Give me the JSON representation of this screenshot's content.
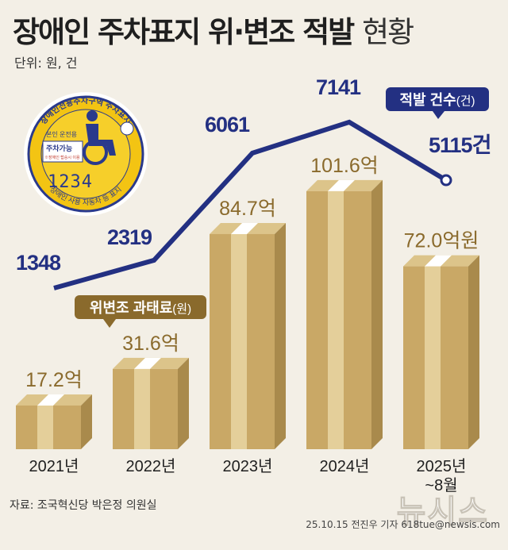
{
  "header": {
    "title_bold": "장애인 주차표지 위·변조 적발",
    "title_light": "현황",
    "unit": "단위: 원, 건"
  },
  "footer": {
    "source": "자료: 조국혁신당 박은정 의원실",
    "credit": "25.10.15 전진우 기자 618tue@newsis.com",
    "watermark": "뉴시스"
  },
  "badge": {
    "top_text": "장애인전용주차구역 주차표지",
    "line1": "본인 운전용",
    "line2": "주차가능",
    "line3": "※장애인 탑승시 이용",
    "plate": "1234",
    "bottom_text": "장애인 사용 자동차 등 표지"
  },
  "colors": {
    "line": "#233082",
    "box": "#c9a866",
    "label_fine": "#8a6a2c",
    "bg": "#f3efe6"
  },
  "chart_data": {
    "type": "bar+line",
    "categories": [
      "2021년",
      "2022년",
      "2023년",
      "2024년",
      "2025년"
    ],
    "category_sub": [
      "",
      "",
      "",
      "",
      "~8월"
    ],
    "bars": {
      "name": "위변조 과태료",
      "unit_suffix": "(원)",
      "values": [
        17.2,
        31.6,
        84.7,
        101.6,
        72.0
      ],
      "labels": [
        "17.2억",
        "31.6억",
        "84.7억",
        "101.6억",
        "72.0억원"
      ]
    },
    "line": {
      "name": "적발 건수",
      "unit_suffix": "(건)",
      "values": [
        1348,
        2319,
        6061,
        7141,
        5115
      ],
      "labels": [
        "1348",
        "2319",
        "6061",
        "7141",
        "5115건"
      ]
    }
  }
}
